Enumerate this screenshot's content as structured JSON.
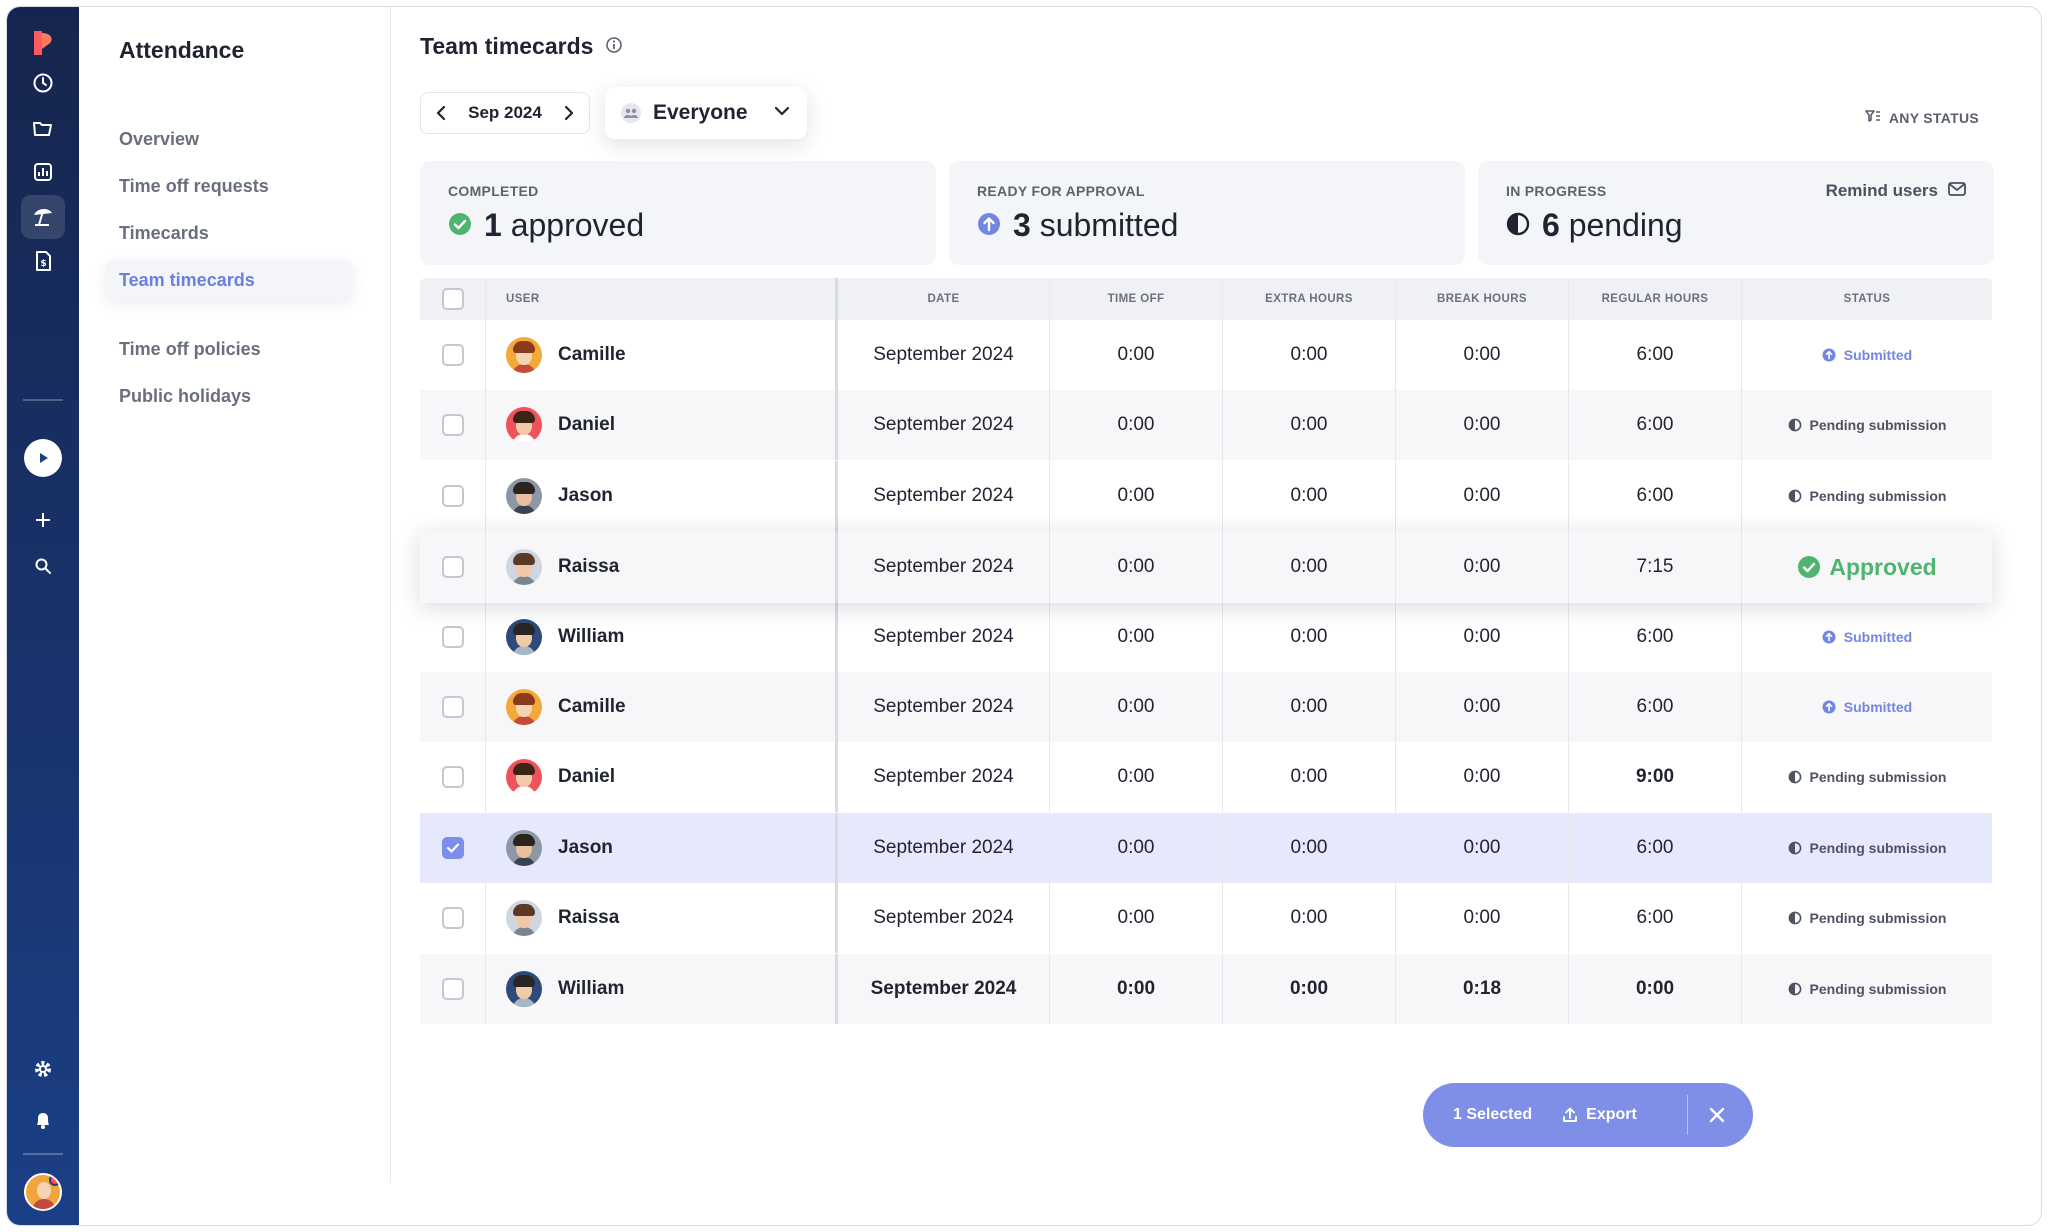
{
  "subnav": {
    "title": "Attendance",
    "items": [
      "Overview",
      "Time off requests",
      "Timecards",
      "Team timecards",
      "Time off policies",
      "Public holidays"
    ],
    "active_index": 3
  },
  "rail_icons": [
    "app-logo",
    "clock-icon",
    "folder-icon",
    "report-icon",
    "beach-umbrella-icon",
    "invoice-icon",
    "play-icon",
    "plus-icon",
    "search-icon",
    "gear-icon",
    "bell-icon",
    "user-avatar"
  ],
  "header": {
    "title": "Team timecards",
    "month": "Sep 2024",
    "people_filter": "Everyone",
    "status_filter": "ANY STATUS"
  },
  "stats": {
    "completed": {
      "caption": "COMPLETED",
      "count": "1",
      "label": "approved"
    },
    "ready": {
      "caption": "READY FOR APPROVAL",
      "count": "3",
      "label": "submitted"
    },
    "progress": {
      "caption": "IN PROGRESS",
      "count": "6",
      "label": "pending",
      "action": "Remind users"
    }
  },
  "table": {
    "columns": [
      "USER",
      "DATE",
      "TIME OFF",
      "EXTRA HOURS",
      "BREAK HOURS",
      "REGULAR HOURS",
      "STATUS"
    ],
    "rows": [
      {
        "user": "Camille",
        "date": "September 2024",
        "time_off": "0:00",
        "extra": "0:00",
        "break": "0:00",
        "regular": "6:00",
        "status": "Submitted",
        "status_type": "submitted",
        "checked": false
      },
      {
        "user": "Daniel",
        "date": "September 2024",
        "time_off": "0:00",
        "extra": "0:00",
        "break": "0:00",
        "regular": "6:00",
        "status": "Pending submission",
        "status_type": "pending",
        "checked": false
      },
      {
        "user": "Jason",
        "date": "September 2024",
        "time_off": "0:00",
        "extra": "0:00",
        "break": "0:00",
        "regular": "6:00",
        "status": "Pending submission",
        "status_type": "pending",
        "checked": false
      },
      {
        "user": "Raissa",
        "date": "September 2024",
        "time_off": "0:00",
        "extra": "0:00",
        "break": "0:00",
        "regular": "7:15",
        "status": "Approved",
        "status_type": "approved",
        "checked": false
      },
      {
        "user": "William",
        "date": "September 2024",
        "time_off": "0:00",
        "extra": "0:00",
        "break": "0:00",
        "regular": "6:00",
        "status": "Submitted",
        "status_type": "submitted",
        "checked": false
      },
      {
        "user": "Camille",
        "date": "September 2024",
        "time_off": "0:00",
        "extra": "0:00",
        "break": "0:00",
        "regular": "6:00",
        "status": "Submitted",
        "status_type": "submitted",
        "checked": false
      },
      {
        "user": "Daniel",
        "date": "September 2024",
        "time_off": "0:00",
        "extra": "0:00",
        "break": "0:00",
        "regular": "9:00",
        "status": "Pending submission",
        "status_type": "pending",
        "checked": false
      },
      {
        "user": "Jason",
        "date": "September 2024",
        "time_off": "0:00",
        "extra": "0:00",
        "break": "0:00",
        "regular": "6:00",
        "status": "Pending submission",
        "status_type": "pending",
        "checked": true
      },
      {
        "user": "Raissa",
        "date": "September 2024",
        "time_off": "0:00",
        "extra": "0:00",
        "break": "0:00",
        "regular": "6:00",
        "status": "Pending submission",
        "status_type": "pending",
        "checked": false
      },
      {
        "user": "William",
        "date": "September 2024",
        "time_off": "0:00",
        "extra": "0:00",
        "break": "0:18",
        "regular": "0:00",
        "status": "Pending submission",
        "status_type": "pending",
        "checked": false
      }
    ]
  },
  "bulk_bar": {
    "selected": "1 Selected",
    "export": "Export"
  },
  "colors": {
    "rail_top": "#16254d",
    "rail_bottom": "#1b3f86",
    "accent": "#7f8ee6",
    "submitted": "#7386e3",
    "approved": "#4fb46e",
    "selected_row": "#e6e8fb"
  }
}
